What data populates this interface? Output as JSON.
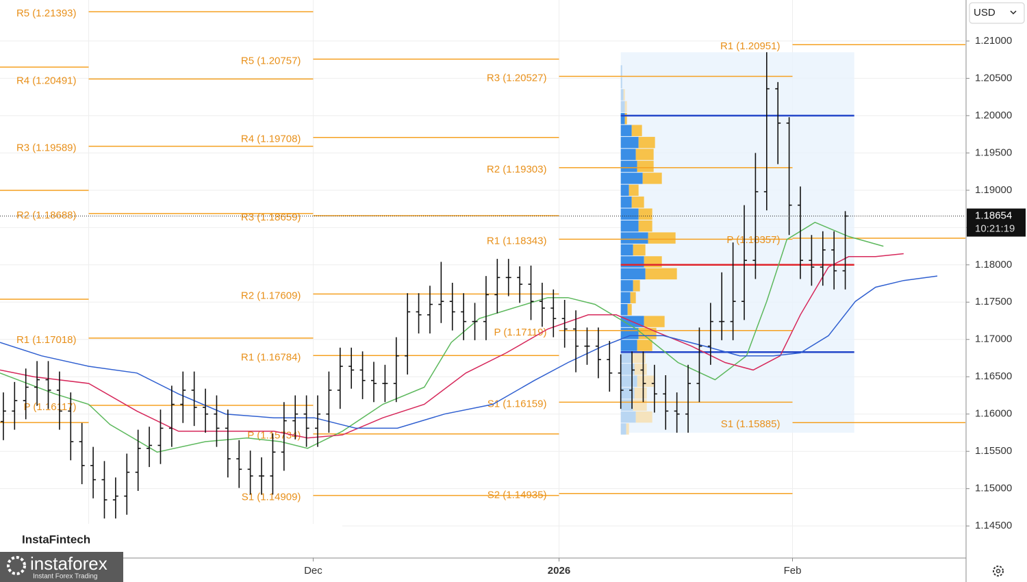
{
  "chart_data": {
    "type": "ohlc",
    "currency": "USD",
    "xlim": [
      0,
      86
    ],
    "ylim": [
      1.1407,
      1.2155
    ],
    "xticks": [
      {
        "value": 7.9,
        "label": null
      },
      {
        "value": 27.9,
        "label": "Dec"
      },
      {
        "value": 49.8,
        "label": "2026"
      },
      {
        "value": 70.6,
        "label": "Feb"
      }
    ],
    "yticks": [
      {
        "value": 1.21,
        "label": "1.21000"
      },
      {
        "value": 1.205,
        "label": "1.20500"
      },
      {
        "value": 1.2,
        "label": "1.20000"
      },
      {
        "value": 1.195,
        "label": "1.19500"
      },
      {
        "value": 1.19,
        "label": "1.19000"
      },
      {
        "value": 1.185,
        "label": "1.18500"
      },
      {
        "value": 1.18,
        "label": "1.18000"
      },
      {
        "value": 1.175,
        "label": "1.17500"
      },
      {
        "value": 1.17,
        "label": "1.17000"
      },
      {
        "value": 1.165,
        "label": "1.16500"
      },
      {
        "value": 1.16,
        "label": "1.16000"
      },
      {
        "value": 1.155,
        "label": "1.15500"
      },
      {
        "value": 1.15,
        "label": "1.15000"
      },
      {
        "value": 1.145,
        "label": "1.14500"
      }
    ],
    "grid": true,
    "bar_color": "#111111",
    "level_color": "#f5a020",
    "opens": [
      1.159,
      1.1604,
      1.1618,
      1.1636,
      1.1646,
      1.1632,
      1.1604,
      1.1563,
      1.1531,
      1.1512,
      1.1485,
      1.149,
      1.1522,
      1.1554,
      1.1558,
      1.1581,
      1.1613,
      1.1632,
      1.1609,
      1.16,
      1.1581,
      1.154,
      1.1526,
      1.1517,
      1.1517,
      1.1549,
      1.1591,
      1.16,
      1.1581,
      1.16,
      1.1632,
      1.1664,
      1.1659,
      1.1645,
      1.1641,
      1.1641,
      1.1678,
      1.1737,
      1.1733,
      1.1747,
      1.1751,
      1.1737,
      1.1724,
      1.1724,
      1.176,
      1.1783,
      1.1783,
      1.1774,
      1.1751,
      1.1742,
      1.1728,
      1.1714,
      1.1691,
      1.1691,
      1.1673,
      1.1655,
      1.1632,
      1.1659,
      1.1641,
      1.1627,
      1.1604,
      1.16,
      1.1641,
      1.1691,
      1.1724,
      1.1724,
      1.1751,
      1.1806,
      1.1898,
      1.2036,
      1.199,
      1.188,
      1.1806,
      1.1797,
      1.182,
      1.1792
    ],
    "highs": [
      1.1629,
      1.1643,
      1.1661,
      1.1671,
      1.1671,
      1.1657,
      1.1629,
      1.1588,
      1.1556,
      1.1537,
      1.1515,
      1.1547,
      1.1579,
      1.1583,
      1.1606,
      1.1638,
      1.1657,
      1.1657,
      1.1634,
      1.1625,
      1.1606,
      1.1565,
      1.1551,
      1.1542,
      1.1574,
      1.1616,
      1.1625,
      1.1625,
      1.1625,
      1.1657,
      1.1689,
      1.1689,
      1.1684,
      1.167,
      1.1666,
      1.1703,
      1.1762,
      1.1762,
      1.1772,
      1.1804,
      1.1776,
      1.1762,
      1.1749,
      1.1785,
      1.1808,
      1.1808,
      1.1798,
      1.1799,
      1.1776,
      1.1767,
      1.1753,
      1.1739,
      1.1716,
      1.1716,
      1.1698,
      1.168,
      1.1684,
      1.1684,
      1.1666,
      1.1652,
      1.1629,
      1.1666,
      1.1716,
      1.1749,
      1.179,
      1.183,
      1.188,
      1.195,
      1.2085,
      1.2045,
      1.1998,
      1.1905,
      1.184,
      1.1845,
      1.1845,
      1.1872
    ],
    "lows": [
      1.1565,
      1.1579,
      1.1593,
      1.1611,
      1.1607,
      1.1579,
      1.1538,
      1.1506,
      1.1487,
      1.146,
      1.146,
      1.1465,
      1.1497,
      1.1529,
      1.1533,
      1.1556,
      1.1588,
      1.1584,
      1.1575,
      1.1556,
      1.1515,
      1.1501,
      1.1492,
      1.1492,
      1.1492,
      1.1524,
      1.1566,
      1.1556,
      1.1556,
      1.1575,
      1.1607,
      1.1634,
      1.162,
      1.1616,
      1.1616,
      1.1616,
      1.1653,
      1.1708,
      1.1708,
      1.1722,
      1.1712,
      1.1699,
      1.1699,
      1.1699,
      1.1735,
      1.1758,
      1.1749,
      1.1726,
      1.1717,
      1.1703,
      1.1689,
      1.1656,
      1.1666,
      1.1648,
      1.163,
      1.1607,
      1.1607,
      1.1616,
      1.1602,
      1.1579,
      1.1575,
      1.1575,
      1.1616,
      1.1666,
      1.1699,
      1.1699,
      1.1726,
      1.1781,
      1.1873,
      1.1935,
      1.184,
      1.1781,
      1.1772,
      1.1772,
      1.1767,
      1.1767
    ],
    "closes": [
      1.1604,
      1.1618,
      1.1636,
      1.1646,
      1.1632,
      1.1604,
      1.1563,
      1.1531,
      1.1512,
      1.1485,
      1.149,
      1.1522,
      1.1554,
      1.1558,
      1.1581,
      1.1613,
      1.1632,
      1.1609,
      1.16,
      1.1581,
      1.154,
      1.1526,
      1.1517,
      1.1517,
      1.1549,
      1.1591,
      1.16,
      1.1581,
      1.16,
      1.1632,
      1.1664,
      1.1659,
      1.1645,
      1.1641,
      1.1641,
      1.1678,
      1.1737,
      1.1733,
      1.1747,
      1.1751,
      1.1737,
      1.1724,
      1.1724,
      1.176,
      1.1783,
      1.1783,
      1.1774,
      1.1751,
      1.1742,
      1.1728,
      1.1714,
      1.1691,
      1.1691,
      1.1673,
      1.1655,
      1.1632,
      1.1659,
      1.1641,
      1.1627,
      1.1604,
      1.16,
      1.1641,
      1.1691,
      1.1724,
      1.1724,
      1.1751,
      1.1806,
      1.1898,
      1.2036,
      1.199,
      1.188,
      1.1806,
      1.1797,
      1.182,
      1.1792,
      1.18654
    ],
    "series": [
      {
        "color": "#5cb85c",
        "x": [
          0,
          4.9,
          7.9,
          9.8,
          14.0,
          18.3,
          22.0,
          25.0,
          27.4,
          30.5,
          34.1,
          37.8,
          40.2,
          42.7,
          45.7,
          48.8,
          50.6,
          53.0,
          56.7,
          60.4,
          63.7,
          66.5,
          68.3,
          70.1,
          72.6,
          75.6,
          78.7
        ],
        "values": [
          1.1655,
          1.1627,
          1.1613,
          1.1586,
          1.1549,
          1.1563,
          1.1568,
          1.1563,
          1.1554,
          1.1577,
          1.1613,
          1.1636,
          1.1696,
          1.1728,
          1.1742,
          1.1756,
          1.1756,
          1.1747,
          1.1714,
          1.1669,
          1.1646,
          1.1678,
          1.1751,
          1.1834,
          1.1857,
          1.1838,
          1.1825
        ]
      },
      {
        "color": "#d6275a",
        "x": [
          0,
          3.0,
          7.9,
          12.2,
          15.9,
          20.1,
          24.4,
          27.4,
          30.5,
          34.1,
          37.8,
          41.5,
          45.1,
          48.8,
          52.4,
          54.9,
          58.5,
          61.6,
          64.6,
          67.1,
          69.5,
          71.3,
          73.8,
          75.6,
          78.0,
          80.5
        ],
        "values": [
          1.1659,
          1.165,
          1.1641,
          1.1604,
          1.1577,
          1.1577,
          1.1577,
          1.1568,
          1.1572,
          1.1595,
          1.1613,
          1.1655,
          1.1682,
          1.1714,
          1.1733,
          1.1733,
          1.171,
          1.1691,
          1.1669,
          1.1659,
          1.1678,
          1.1733,
          1.1797,
          1.1811,
          1.1811,
          1.1815
        ]
      },
      {
        "color": "#2f5fd0",
        "x": [
          0,
          3.7,
          7.9,
          12.2,
          15.9,
          20.1,
          24.4,
          28.0,
          31.7,
          35.4,
          39.6,
          43.9,
          47.6,
          50.6,
          53.7,
          56.1,
          59.1,
          62.8,
          65.9,
          68.9,
          71.3,
          73.8,
          76.2,
          78.0,
          80.5,
          83.5
        ],
        "values": [
          1.1696,
          1.1678,
          1.1664,
          1.1655,
          1.1627,
          1.16,
          1.1595,
          1.1595,
          1.1581,
          1.1581,
          1.16,
          1.1613,
          1.1645,
          1.1669,
          1.1691,
          1.1705,
          1.1705,
          1.1691,
          1.1678,
          1.1678,
          1.1682,
          1.1705,
          1.1751,
          1.177,
          1.1779,
          1.1785
        ]
      }
    ],
    "levels": [
      {
        "value": 1.20651,
        "x": [
          0,
          7.9
        ]
      },
      {
        "value": 1.18999,
        "x": [
          0,
          7.9
        ]
      },
      {
        "value": 1.17539,
        "x": [
          0,
          7.9
        ]
      },
      {
        "value": 1.15886,
        "x": [
          0,
          7.9
        ]
      },
      {
        "label": "R5 (1.21393)",
        "value": 1.21393,
        "x": [
          7.9,
          27.9
        ]
      },
      {
        "label": "R4 (1.20491)",
        "value": 1.20491,
        "x": [
          7.9,
          27.9
        ]
      },
      {
        "label": "R3 (1.19589)",
        "value": 1.19589,
        "x": [
          7.9,
          27.9
        ]
      },
      {
        "label": "R2 (1.18688)",
        "value": 1.18688,
        "x": [
          7.9,
          27.9
        ]
      },
      {
        "label": "R1 (1.17018)",
        "value": 1.17018,
        "x": [
          7.9,
          27.9
        ]
      },
      {
        "label": "P (1.16117)",
        "value": 1.16117,
        "x": [
          7.9,
          27.9
        ]
      },
      {
        "label": "R5 (1.20757)",
        "value": 1.20757,
        "x": [
          27.9,
          49.8
        ]
      },
      {
        "label": "R4 (1.19708)",
        "value": 1.19708,
        "x": [
          27.9,
          49.8
        ]
      },
      {
        "label": "R3 (1.18659)",
        "value": 1.18659,
        "x": [
          27.9,
          49.8
        ]
      },
      {
        "label": "R2 (1.17609)",
        "value": 1.17609,
        "x": [
          27.9,
          49.8
        ]
      },
      {
        "label": "R1 (1.16784)",
        "value": 1.16784,
        "x": [
          27.9,
          49.8
        ]
      },
      {
        "label": "P (1.15734)",
        "value": 1.15734,
        "x": [
          27.9,
          49.8
        ]
      },
      {
        "label": "S1 (1.14909)",
        "value": 1.14909,
        "x": [
          27.9,
          49.8
        ]
      },
      {
        "label": "R3 (1.20527)",
        "value": 1.20527,
        "x": [
          49.8,
          70.6
        ]
      },
      {
        "label": "R2 (1.19303)",
        "value": 1.19303,
        "x": [
          49.8,
          70.6
        ]
      },
      {
        "label": "R1 (1.18343)",
        "value": 1.18343,
        "x": [
          49.8,
          70.6
        ]
      },
      {
        "label": "P (1.17119)",
        "value": 1.17119,
        "x": [
          49.8,
          70.6
        ]
      },
      {
        "label": "S1 (1.16159)",
        "value": 1.16159,
        "x": [
          49.8,
          70.6
        ]
      },
      {
        "label": "S2 (1.14935)",
        "value": 1.14935,
        "x": [
          49.8,
          70.6
        ]
      },
      {
        "label": "R1 (1.20951)",
        "value": 1.20951,
        "x": [
          70.6,
          86
        ]
      },
      {
        "label": "P (1.18357)",
        "value": 1.18357,
        "x": [
          70.6,
          86
        ]
      },
      {
        "label": "S1 (1.15885)",
        "value": 1.15885,
        "x": [
          70.6,
          86
        ]
      }
    ],
    "profile": {
      "x": [
        55.3,
        76.1
      ],
      "range": [
        1.1575,
        1.2085
      ],
      "poc": 1.18,
      "vah": 1.2,
      "val": 1.1683,
      "prices": [
        1.206,
        1.2044,
        1.2028,
        1.2012,
        1.1996,
        1.198,
        1.1964,
        1.1948,
        1.1932,
        1.1916,
        1.19,
        1.1884,
        1.1868,
        1.1852,
        1.1836,
        1.182,
        1.1804,
        1.1788,
        1.1772,
        1.1756,
        1.174,
        1.1724,
        1.1708,
        1.1692,
        1.1676,
        1.166,
        1.1644,
        1.1628,
        1.1612,
        1.1596,
        1.158
      ],
      "buy": [
        2,
        2,
        4,
        6,
        6,
        16,
        26,
        22,
        24,
        32,
        12,
        16,
        26,
        26,
        40,
        18,
        34,
        36,
        18,
        14,
        10,
        34,
        26,
        24,
        16,
        20,
        24,
        20,
        18,
        22,
        8
      ],
      "sell": [
        0,
        0,
        2,
        3,
        3,
        15,
        24,
        26,
        24,
        28,
        14,
        18,
        20,
        20,
        40,
        18,
        26,
        46,
        10,
        8,
        6,
        30,
        26,
        22,
        20,
        18,
        26,
        18,
        20,
        24,
        4
      ]
    },
    "current_price": {
      "value": 1.18654,
      "label": "1.18654",
      "countdown": "10:21:19"
    },
    "brand": "InstaFintech",
    "logo": "instaforex",
    "logo_tagline": "Instant Forex Trading"
  }
}
